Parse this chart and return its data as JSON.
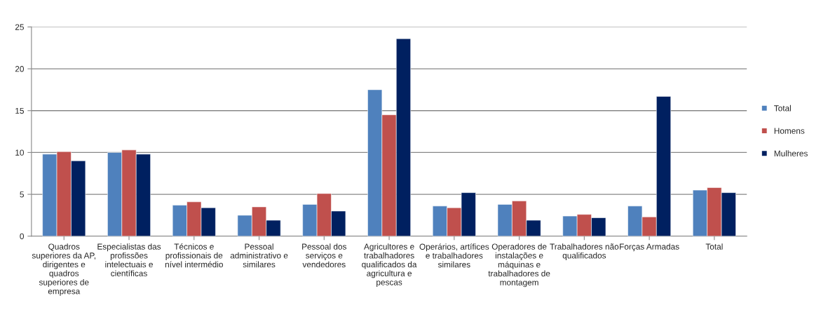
{
  "chart_data": {
    "type": "bar",
    "categories": [
      "Quadros\nsuperiores da AP,\ndirigentes e\nquadros\nsuperiores de\nempresa",
      "Especialistas das\nprofissões\nintelectuais e\ncientíficas",
      "Técnicos e\nprofissionais de\nnível intermédio",
      "Pessoal\nadministrativo e\nsimilares",
      "Pessoal dos\nserviços e\nvendedores",
      "Agricultores e\ntrabalhadores\nqualificados da\nagricultura e\npescas",
      "Operários, artífices\ne trabalhadores\nsimilares",
      "Operadores de\ninstalações e\nmáquinas e\ntrabalhadores de\nmontagem",
      "Trabalhadores não\nqualificados",
      "Forças Armadas",
      "Total"
    ],
    "series": [
      {
        "name": "Total",
        "color": "#4f81bd",
        "values": [
          9.8,
          10.0,
          3.7,
          2.5,
          3.8,
          17.5,
          3.6,
          3.8,
          2.4,
          3.6,
          5.5
        ]
      },
      {
        "name": "Homens",
        "color": "#c0504d",
        "values": [
          10.1,
          10.3,
          4.1,
          3.5,
          5.1,
          14.5,
          3.4,
          4.2,
          2.6,
          2.3,
          5.8
        ]
      },
      {
        "name": "Mulheres",
        "color": "#002060",
        "values": [
          9.0,
          9.8,
          3.4,
          1.9,
          3.0,
          23.6,
          5.2,
          1.9,
          2.2,
          16.7,
          5.2
        ]
      }
    ],
    "ylim": [
      0,
      25
    ],
    "yticks": [
      0,
      5,
      10,
      15,
      20,
      25
    ],
    "grid": "y",
    "legend": "right"
  }
}
